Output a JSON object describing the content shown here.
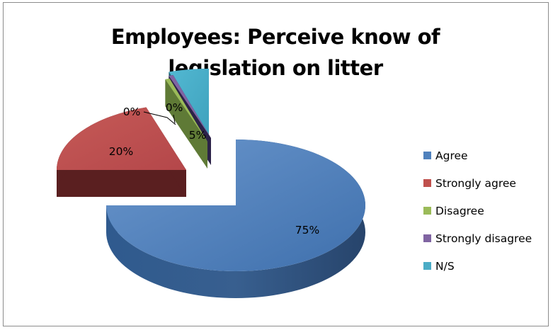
{
  "chart_data": {
    "type": "pie",
    "title": "Employees: Perceive know of legislation on litter",
    "title_lines": [
      "Employees: Perceive know of",
      "legislation on litter"
    ],
    "categories": [
      "Agree",
      "Strongly agree",
      "Disagree",
      "Strongly disagree",
      "N/S"
    ],
    "values": [
      75,
      20,
      0,
      0,
      5
    ],
    "data_labels": [
      "75%",
      "20%",
      "0%",
      "0%",
      "5%"
    ],
    "colors": [
      "#4f81bd",
      "#c0504d",
      "#9bbb59",
      "#8064a2",
      "#4bacc6"
    ],
    "style": "3d-exploded",
    "legend_position": "right"
  }
}
